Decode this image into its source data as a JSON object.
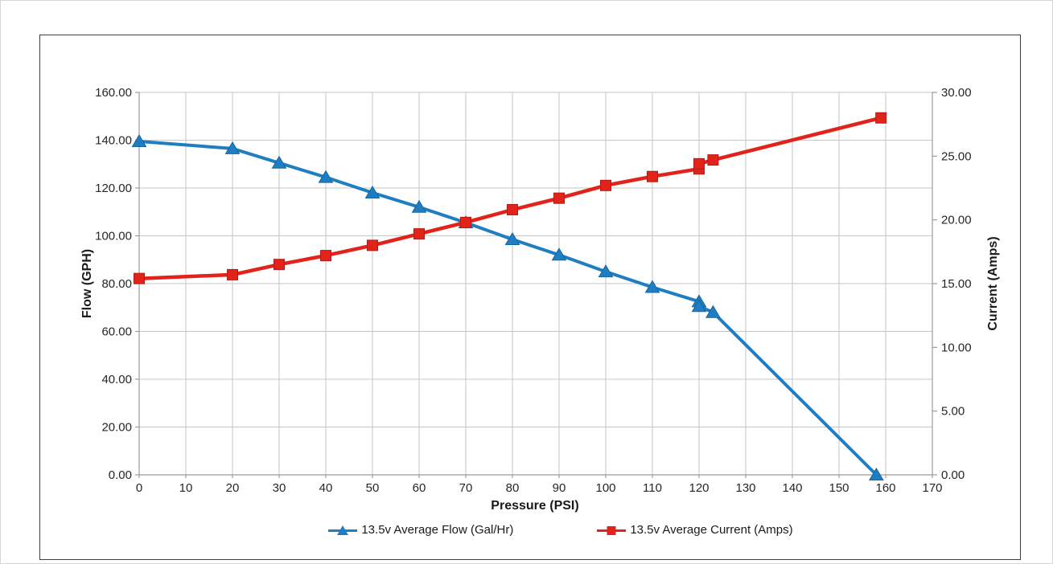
{
  "chart_data": {
    "type": "line",
    "title": "",
    "x_axis": {
      "title": "Pressure (PSI)",
      "min": 0,
      "max": 170,
      "tick_step": 10,
      "ticks": [
        "0",
        "10",
        "20",
        "30",
        "40",
        "50",
        "60",
        "70",
        "80",
        "90",
        "100",
        "110",
        "120",
        "130",
        "140",
        "150",
        "160",
        "170"
      ]
    },
    "left_axis": {
      "title": "Flow (GPH)",
      "min": 0,
      "max": 160,
      "tick_step": 20,
      "ticks": [
        "0.00",
        "20.00",
        "40.00",
        "60.00",
        "80.00",
        "100.00",
        "120.00",
        "140.00",
        "160.00"
      ]
    },
    "right_axis": {
      "title": "Current (Amps)",
      "min": 0,
      "max": 30,
      "tick_step": 5,
      "ticks": [
        "0.00",
        "5.00",
        "10.00",
        "15.00",
        "20.00",
        "25.00",
        "30.00"
      ]
    },
    "grid": {
      "vertical": true,
      "horizontal": true
    },
    "legend_position": "bottom",
    "colors": {
      "flow": "#1F7EC2",
      "flow_edge": "#15659E",
      "current": "#E2231B",
      "current_edge": "#B51B13",
      "gridline": "#c6c6c6",
      "axis_line": "#9b9b9b",
      "tick_text": "#262626"
    },
    "series": [
      {
        "id": "flow",
        "name": "13.5v Average Flow (Gal/Hr)",
        "axis": "left",
        "color": "#1F7EC2",
        "edge_color": "#15659E",
        "marker": "triangle",
        "points": [
          [
            0,
            139.5
          ],
          [
            20,
            136.5
          ],
          [
            30,
            130.5
          ],
          [
            40,
            124.5
          ],
          [
            50,
            118.0
          ],
          [
            60,
            112.0
          ],
          [
            70,
            105.5
          ],
          [
            80,
            98.5
          ],
          [
            90,
            92.0
          ],
          [
            100,
            85.0
          ],
          [
            110,
            78.5
          ],
          [
            120,
            72.5
          ],
          [
            120,
            70.5
          ],
          [
            123,
            68.0
          ],
          [
            158,
            0.0
          ]
        ]
      },
      {
        "id": "current",
        "name": "13.5v Average Current (Amps)",
        "axis": "right",
        "color": "#E2231B",
        "edge_color": "#B51B13",
        "marker": "square",
        "points": [
          [
            0,
            15.4
          ],
          [
            20,
            15.7
          ],
          [
            30,
            16.5
          ],
          [
            40,
            17.2
          ],
          [
            50,
            18.0
          ],
          [
            60,
            18.9
          ],
          [
            70,
            19.8
          ],
          [
            80,
            20.8
          ],
          [
            90,
            21.7
          ],
          [
            100,
            22.7
          ],
          [
            110,
            23.4
          ],
          [
            120,
            24.0
          ],
          [
            120,
            24.4
          ],
          [
            123,
            24.7
          ],
          [
            159,
            28.0
          ]
        ]
      }
    ]
  }
}
